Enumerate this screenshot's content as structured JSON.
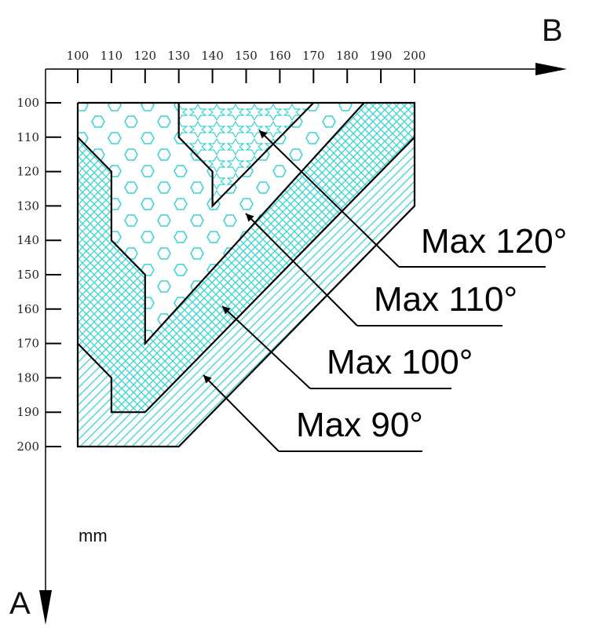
{
  "axes": {
    "horizontal": {
      "name": "B",
      "ticks": [
        "100",
        "110",
        "120",
        "130",
        "140",
        "150",
        "160",
        "170",
        "180",
        "190",
        "200"
      ]
    },
    "vertical": {
      "name": "A",
      "ticks": [
        "100",
        "110",
        "120",
        "130",
        "140",
        "150",
        "160",
        "170",
        "180",
        "190",
        "200"
      ]
    }
  },
  "unit": "mm",
  "zones": [
    {
      "label": "Max 120°",
      "pattern": "stars"
    },
    {
      "label": "Max 110°",
      "pattern": "hexagons"
    },
    {
      "label": "Max 100°",
      "pattern": "crosshatch"
    },
    {
      "label": "Max 90°",
      "pattern": "diagonal-lines"
    }
  ],
  "colors": {
    "hatch": "#35d4d4",
    "outline": "#000000"
  }
}
